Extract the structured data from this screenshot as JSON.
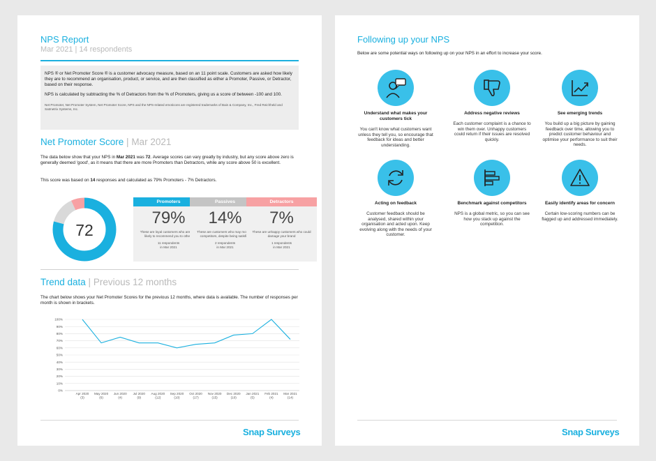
{
  "left": {
    "title": "NPS Report",
    "subtitle": "Mar 2021 | 14 respondents",
    "intro_p1": "NPS ® or Net Promoter Score ® is a customer advocacy measure, based on an 11 point scale. Customers are asked how likely they are to recommend an organisation, product, or service, and are then classified as either a Promoter, Passive, or Detractor, based on their response.",
    "intro_p2": "NPS is calculated by subtracting the % of Detractors from the % of Promoters, giving us a score of between -100 and 100.",
    "intro_note": "Net Promoter, Net Promoter System, Net Promoter Score, NPS and the NPS-related emoticons are registered trademarks of Bain & Company, Inc., Fred Reichheld and Satmetrix Systems, Inc.",
    "nps_heading": "Net Promoter Score",
    "nps_heading_sep": " | ",
    "nps_heading_period": "Mar 2021",
    "nps_text_1": "The data below show that your NPS in ",
    "nps_text_month": "Mar 2021",
    "nps_text_2": " was ",
    "nps_text_score": "72",
    "nps_text_3": ". Average scores can vary greatly by industry, but any score above zero is generally deemed 'good', as it means that there are more Promoters than Detractors, while any score above 50 is excellent.",
    "nps_calc_1": "This score was based on ",
    "nps_calc_n": "14",
    "nps_calc_2": " responses and calculated as 79% Promoters - 7% Detractors.",
    "score": "72",
    "cards": [
      {
        "label": "Promoters",
        "pct": "79%",
        "desc": "These are loyal customers who are very likely to recommend you to others",
        "resp1": "11 respondents",
        "resp2": "in Mar 2021",
        "color": "#1ab0df"
      },
      {
        "label": "Passives",
        "pct": "14%",
        "desc": "These are customers who may move to competitors, despite being satisfied",
        "resp1": "2 respondents",
        "resp2": "in Mar 2021",
        "color": "#c4c4c4"
      },
      {
        "label": "Detractors",
        "pct": "7%",
        "desc": "These are unhappy customers who could damage your brand",
        "resp1": "1 respondents",
        "resp2": "in Mar 2021",
        "color": "#f7a1a3"
      }
    ],
    "trend_heading": "Trend data",
    "trend_sep": " | ",
    "trend_period": "Previous 12 months",
    "trend_text": "The chart below shows your Net Promoter Scores for the previous 12 months, where data is available. The number of responses per month is shown in brackets.",
    "logo": "Snap Surveys"
  },
  "right": {
    "title": "Following up your NPS",
    "intro": "Below are some potential ways on following up on your NPS in an effort to increase your score.",
    "items": [
      {
        "icon": "speech-person-icon",
        "title": "Understand what makes your customers tick",
        "body": "You can't know what customers want unless they tell you, so encourage that feedback for ideas and better understanding."
      },
      {
        "icon": "thumbs-down-icon",
        "title": "Address negative reviews",
        "body": "Each customer complaint is a chance to win them over. Unhappy customers could return if their issues are resolved quickly."
      },
      {
        "icon": "trend-up-icon",
        "title": "See emerging trends",
        "body": "You build up a big picture by gaining feedback over time, allowing you to predict customer behaviour and optimise your performance to suit their needs."
      },
      {
        "icon": "refresh-icon",
        "title": "Acting on feedback",
        "body": "Customer feedback should be analysed, shared within your organisation and acted upon. Keep evolving along with the needs of your customer."
      },
      {
        "icon": "bar-chart-icon",
        "title": "Benchmark against competitors",
        "body": "NPS is a global metric, so you can see how you stack up against the competition."
      },
      {
        "icon": "warning-icon",
        "title": "Easily identify areas for concern",
        "body": "Certain low-scoring numbers can be flagged up and addressed immediately."
      }
    ],
    "logo": "Snap Surveys"
  },
  "chart_data": [
    {
      "type": "line",
      "categories": [
        "Apr 2020",
        "May 2020",
        "Jun 2020",
        "Jul 2020",
        "Aug 2020",
        "Sep 2020",
        "Oct 2020",
        "Nov 2020",
        "Dec 2020",
        "Jan 2021",
        "Feb 2021",
        "Mar 2021"
      ],
      "category_counts": [
        "(3)",
        "(6)",
        "(4)",
        "(9)",
        "(12)",
        "(10)",
        "(17)",
        "(15)",
        "(10)",
        "(5)",
        "(4)",
        "(14)"
      ],
      "values": [
        100,
        67,
        75,
        67,
        67,
        60,
        65,
        67,
        78,
        80,
        100,
        72
      ],
      "ylim": [
        0,
        100
      ],
      "yticks": [
        "0%",
        "10%",
        "20%",
        "30%",
        "40%",
        "50%",
        "60%",
        "70%",
        "80%",
        "90%",
        "100%"
      ],
      "grid": true,
      "color": "#1ab0df"
    },
    {
      "type": "pie",
      "labels": [
        "Promoters",
        "Passives",
        "Detractors"
      ],
      "values": [
        79,
        14,
        7
      ],
      "colors": [
        "#1ab0df",
        "#d9d9d9",
        "#f7a1a3"
      ]
    }
  ]
}
